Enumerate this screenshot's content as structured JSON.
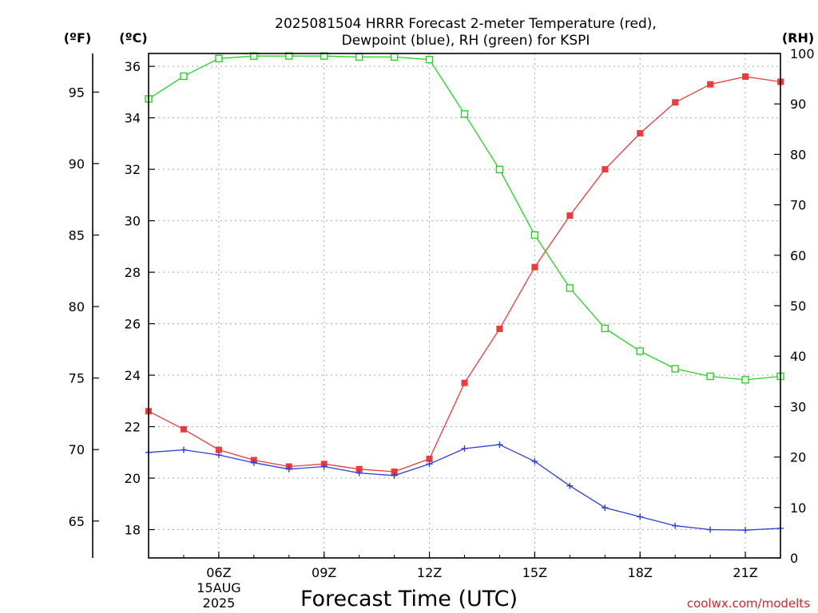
{
  "chart_data": {
    "type": "line",
    "title_line1": "2025081504 HRRR Forecast 2-meter Temperature (red),",
    "title_line2": "Dewpoint (blue), RH (green) for KSPI",
    "xlabel": "Forecast Time (UTC)",
    "x_ticks": [
      "06Z",
      "09Z",
      "12Z",
      "15Z",
      "18Z",
      "21Z"
    ],
    "x_date_label": [
      "15AUG",
      "2025"
    ],
    "x_range": [
      "04Z",
      "22Z"
    ],
    "left_axis_f_label": "(ºF)",
    "left_axis_f_ticks": [
      "65",
      "70",
      "75",
      "80",
      "85",
      "90",
      "95"
    ],
    "left_axis_c_label": "(ºC)",
    "left_axis_c_ticks": [
      "18",
      "20",
      "22",
      "24",
      "26",
      "28",
      "30",
      "32",
      "34",
      "36"
    ],
    "left_axis_c_range": [
      16.9,
      36.5
    ],
    "right_axis_label": "(RH)",
    "right_axis_ticks": [
      "0",
      "10",
      "20",
      "30",
      "40",
      "50",
      "60",
      "70",
      "80",
      "90",
      "100"
    ],
    "right_axis_range": [
      0,
      100
    ],
    "hours": [
      4,
      5,
      6,
      7,
      8,
      9,
      10,
      11,
      12,
      13,
      14,
      15,
      16,
      17,
      18,
      19,
      20,
      21,
      22
    ],
    "grid": true,
    "series": [
      {
        "color": "#ee3a3a",
        "marker": "filled-square",
        "axis": "celsius",
        "values": [
          22.6,
          21.9,
          21.1,
          20.7,
          20.45,
          20.55,
          20.35,
          20.25,
          20.75,
          23.7,
          25.8,
          28.2,
          30.2,
          32.0,
          33.4,
          34.6,
          35.3,
          35.6,
          35.4
        ]
      },
      {
        "color": "#2e3ee0",
        "marker": "plus",
        "axis": "celsius",
        "values": [
          21.0,
          21.1,
          20.9,
          20.6,
          20.35,
          20.45,
          20.2,
          20.1,
          20.55,
          21.15,
          21.3,
          20.65,
          19.7,
          18.85,
          18.5,
          18.15,
          18.0,
          17.98,
          18.05
        ]
      },
      {
        "color": "#1ed81e",
        "marker": "open-square",
        "axis": "rh",
        "values": [
          91.0,
          95.5,
          99.0,
          99.5,
          99.5,
          99.5,
          99.3,
          99.3,
          98.8,
          88.0,
          77.0,
          64.0,
          53.5,
          45.5,
          41.0,
          37.5,
          36.0,
          35.3,
          36.0
        ]
      }
    ]
  },
  "credit": "coolwx.com/modelts"
}
